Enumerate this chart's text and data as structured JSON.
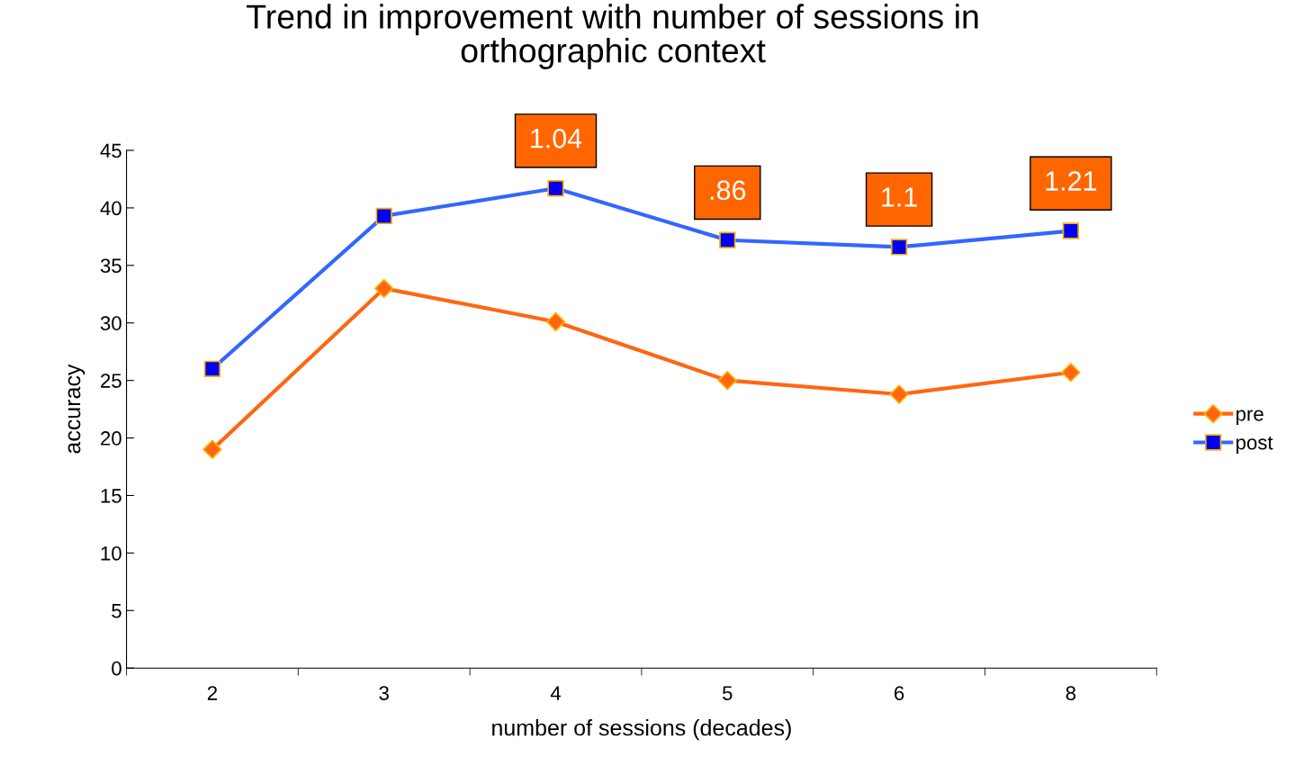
{
  "chart_data": {
    "type": "line",
    "title": "Trend in improvement with number of sessions in\northographic context",
    "xlabel": "number of sessions (decades)",
    "ylabel": "accuracy",
    "categories": [
      "2",
      "3",
      "4",
      "5",
      "6",
      "8"
    ],
    "series": [
      {
        "name": "pre",
        "color": "#ff6611",
        "marker": "diamond",
        "values": [
          19.0,
          33.0,
          30.1,
          25.0,
          23.8,
          25.7
        ]
      },
      {
        "name": "post",
        "color": "#3366ff",
        "marker": "square",
        "values": [
          26.0,
          39.3,
          41.7,
          37.2,
          36.6,
          38.0
        ]
      }
    ],
    "ylim": [
      0,
      45
    ],
    "yticks": [
      0,
      5,
      10,
      15,
      20,
      25,
      30,
      35,
      40,
      45
    ],
    "grid": false,
    "legend": "right",
    "line_style": "solid",
    "annotations": [
      {
        "text": "1.04",
        "x": "4",
        "y": 41.7
      },
      {
        "text": ".86",
        "x": "5",
        "y": 37.2
      },
      {
        "text": "1.1",
        "x": "6",
        "y": 36.6
      },
      {
        "text": "1.21",
        "x": "8",
        "y": 38.0
      }
    ]
  }
}
